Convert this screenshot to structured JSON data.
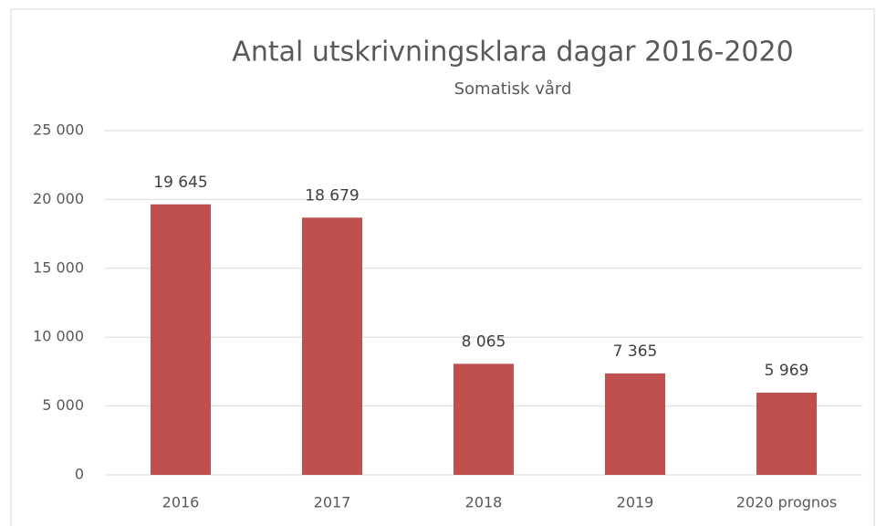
{
  "chart_data": {
    "type": "bar",
    "title": "Antal utskrivningsklara dagar 2016-2020",
    "subtitle": "Somatisk vård",
    "categories": [
      "2016",
      "2017",
      "2018",
      "2019",
      "2020 prognos"
    ],
    "values": [
      19645,
      18679,
      8065,
      7365,
      5969
    ],
    "value_labels": [
      "19 645",
      "18 679",
      "8 065",
      "7 365",
      "5 969"
    ],
    "color": "#c0504d",
    "ylim": [
      0,
      25000
    ],
    "yticks": [
      0,
      {
        "value": 5000,
        "label": "5 000"
      },
      {
        "value": 10000,
        "label": "10 000"
      },
      {
        "value": 15000,
        "label": "15 000"
      },
      {
        "value": 20000,
        "label": "20 000"
      },
      {
        "value": 25000,
        "label": "25 000"
      }
    ],
    "grid": true
  }
}
